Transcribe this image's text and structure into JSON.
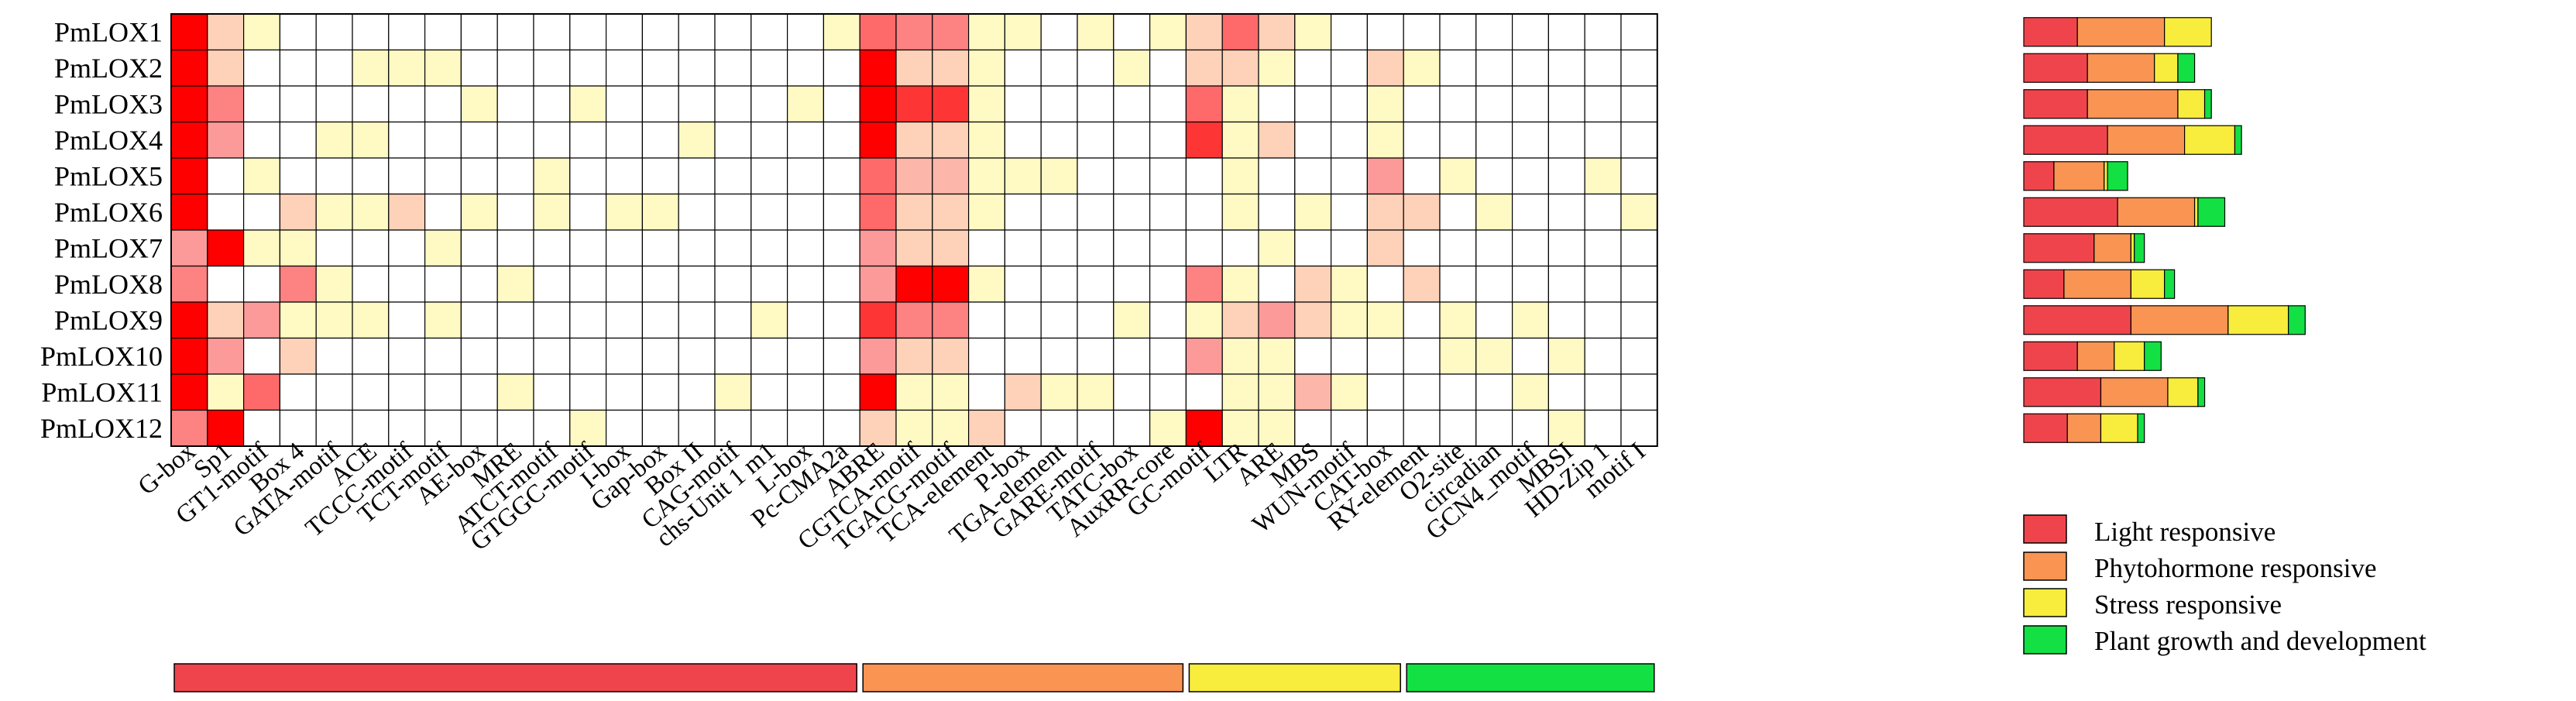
{
  "chart_data": [
    {
      "type": "heatmap",
      "title": "",
      "xlabel": "",
      "ylabel": "",
      "rows": [
        "PmLOX1",
        "PmLOX2",
        "PmLOX3",
        "PmLOX4",
        "PmLOX5",
        "PmLOX6",
        "PmLOX7",
        "PmLOX8",
        "PmLOX9",
        "PmLOX10",
        "PmLOX11",
        "PmLOX12"
      ],
      "columns": [
        "G-box",
        "Sp1",
        "GT1-motif",
        "Box 4",
        "GATA-motif",
        "ACE",
        "TCCC-motif",
        "TCT-motif",
        "AE-box",
        "MRE",
        "ATCT-motif",
        "GTGGC-motif",
        "I-box",
        "Gap-box",
        "Box II",
        "CAG-motif",
        "chs-Unit 1 m1",
        "L-box",
        "Pc-CMA2a",
        "ABRE",
        "CGTCA-motif",
        "TGACG-motif",
        "TCA-element",
        "P-box",
        "TGA-element",
        "GARE-motif",
        "TATC-box",
        "AuxRR-core",
        "GC-motif",
        "LTR",
        "ARE",
        "MBS",
        "WUN-motif",
        "CAT-box",
        "RY-element",
        "O2-site",
        "circadian",
        "GCN4_motif",
        "MBSI",
        "HD-Zip 1",
        "motif I"
      ],
      "column_groups": [
        {
          "category": "Light responsive",
          "start": 0,
          "end": 18
        },
        {
          "category": "Phytohormone responsive",
          "start": 19,
          "end": 27
        },
        {
          "category": "Stress responsive",
          "start": 28,
          "end": 33
        },
        {
          "category": "Plant growth and development",
          "start": 34,
          "end": 40
        }
      ],
      "color_scale": {
        "min": 0,
        "max": 4,
        "colors": [
          "#ffffff",
          "#fff9c4",
          "#fed1b9",
          "#fc9a9a",
          "#fe6a6a",
          "#fe0000"
        ]
      },
      "values": [
        [
          5,
          2,
          1,
          0,
          0,
          0,
          0,
          0,
          0,
          0,
          0,
          0,
          0,
          0,
          0,
          0,
          0,
          0,
          1,
          4,
          3.5,
          3.5,
          1,
          1,
          0,
          1,
          0,
          1,
          2,
          4,
          2,
          1,
          0,
          0,
          0,
          0,
          0,
          0,
          0,
          0,
          0
        ],
        [
          5,
          2,
          0,
          0,
          0,
          1,
          1,
          1,
          0,
          0,
          0,
          0,
          0,
          0,
          0,
          0,
          0,
          0,
          0,
          5,
          2,
          2,
          1,
          0,
          0,
          0,
          1,
          0,
          2,
          2,
          1,
          0,
          0,
          2,
          1,
          0,
          0,
          0,
          0,
          0,
          0
        ],
        [
          5,
          3.5,
          0,
          0,
          0,
          0,
          0,
          0,
          1,
          0,
          0,
          1,
          0,
          0,
          0,
          0,
          0,
          1,
          0,
          5,
          4.5,
          4.5,
          1,
          0,
          0,
          0,
          0,
          0,
          4,
          1,
          0,
          0,
          0,
          1,
          0,
          0,
          0,
          0,
          0,
          0,
          0
        ],
        [
          5,
          3,
          0,
          0,
          1,
          1,
          0,
          0,
          0,
          0,
          0,
          0,
          0,
          0,
          1,
          0,
          0,
          0,
          0,
          5,
          2,
          2,
          1,
          0,
          0,
          0,
          0,
          0,
          4.5,
          1,
          2,
          0,
          0,
          1,
          0,
          0,
          0,
          0,
          0,
          0,
          0
        ],
        [
          5,
          0,
          1,
          0,
          0,
          0,
          0,
          0,
          0,
          0,
          1,
          0,
          0,
          0,
          0,
          0,
          0,
          0,
          0,
          4,
          2.5,
          2.5,
          1,
          1,
          1,
          0,
          0,
          0,
          0,
          1,
          0,
          0,
          0,
          3,
          0,
          1,
          0,
          0,
          0,
          1,
          0
        ],
        [
          5,
          0,
          0,
          2,
          1,
          1,
          2,
          0,
          1,
          0,
          1,
          0,
          1,
          1,
          0,
          0,
          0,
          0,
          0,
          4,
          2,
          2,
          1,
          0,
          0,
          0,
          0,
          0,
          0,
          1,
          0,
          1,
          0,
          2,
          2,
          0,
          1,
          0,
          0,
          0,
          1
        ],
        [
          3,
          5,
          1,
          1,
          0,
          0,
          0,
          1,
          0,
          0,
          0,
          0,
          0,
          0,
          0,
          0,
          0,
          0,
          0,
          3,
          2,
          2,
          0,
          0,
          0,
          0,
          0,
          0,
          0,
          0,
          1,
          0,
          0,
          2,
          0,
          0,
          0,
          0,
          0,
          0,
          0
        ],
        [
          3.5,
          0,
          0,
          3.5,
          1,
          0,
          0,
          0,
          0,
          1,
          0,
          0,
          0,
          0,
          0,
          0,
          0,
          0,
          0,
          3,
          5,
          5,
          1,
          0,
          0,
          0,
          0,
          0,
          3.5,
          1,
          0,
          2,
          1,
          0,
          2,
          0,
          0,
          0,
          0,
          0,
          0
        ],
        [
          5,
          2,
          3,
          1,
          1,
          1,
          0,
          1,
          0,
          0,
          0,
          0,
          0,
          0,
          0,
          0,
          1,
          0,
          0,
          4.5,
          3.5,
          3.5,
          0,
          0,
          0,
          0,
          1,
          0,
          1,
          2,
          3,
          2,
          1,
          1,
          0,
          1,
          0,
          1,
          0,
          0,
          0
        ],
        [
          5,
          3,
          0,
          2,
          0,
          0,
          0,
          0,
          0,
          0,
          0,
          0,
          0,
          0,
          0,
          0,
          0,
          0,
          0,
          3,
          2,
          2,
          0,
          0,
          0,
          0,
          0,
          0,
          3,
          1,
          1,
          0,
          0,
          0,
          0,
          1,
          1,
          0,
          1,
          0,
          0
        ],
        [
          5,
          1,
          4,
          0,
          0,
          0,
          0,
          0,
          0,
          1,
          0,
          0,
          0,
          0,
          0,
          1,
          0,
          0,
          0,
          5,
          1,
          1,
          0,
          2,
          1,
          1,
          0,
          0,
          0,
          1,
          1,
          2.5,
          1,
          0,
          0,
          0,
          0,
          1,
          0,
          0,
          0
        ],
        [
          3.5,
          5,
          0,
          0,
          0,
          0,
          0,
          0,
          0,
          0,
          0,
          1,
          0,
          0,
          0,
          0,
          0,
          0,
          0,
          2,
          1,
          1,
          2,
          0,
          0,
          0,
          0,
          1,
          5,
          1,
          1,
          0,
          0,
          0,
          0,
          0,
          0,
          0,
          1,
          0,
          0
        ]
      ]
    },
    {
      "type": "bar",
      "orientation": "horizontal",
      "stacked": true,
      "categories": [
        "PmLOX1",
        "PmLOX2",
        "PmLOX3",
        "PmLOX4",
        "PmLOX5",
        "PmLOX6",
        "PmLOX7",
        "PmLOX8",
        "PmLOX9",
        "PmLOX10",
        "PmLOX11",
        "PmLOX12"
      ],
      "series": [
        {
          "name": "Light responsive",
          "values": [
            8,
            9.5,
            9.5,
            12.5,
            4.5,
            14,
            10.5,
            6,
            16,
            8,
            11.5,
            6.5
          ]
        },
        {
          "name": "Phytohormone responsive",
          "values": [
            13,
            10,
            13.5,
            11.5,
            7.5,
            11.5,
            5.5,
            10,
            14.5,
            5.5,
            10,
            5
          ]
        },
        {
          "name": "Stress responsive",
          "values": [
            7,
            3.5,
            4,
            7.5,
            0.5,
            0.5,
            0.5,
            5,
            9,
            4.5,
            4.5,
            5.5
          ]
        },
        {
          "name": "Plant growth and development",
          "values": [
            0,
            2.5,
            1,
            1,
            3,
            4,
            1.5,
            1.5,
            2.5,
            2.5,
            1,
            1
          ]
        }
      ]
    }
  ],
  "legend": [
    {
      "label": "Light responsive",
      "color": "#f0444c"
    },
    {
      "label": "Phytohormone responsive",
      "color": "#f99453"
    },
    {
      "label": "Stress responsive",
      "color": "#f8ec3c"
    },
    {
      "label": "Plant growth and development",
      "color": "#13e043"
    }
  ],
  "colors": {
    "cell_border": "#000000",
    "bar_border": "#000000"
  }
}
